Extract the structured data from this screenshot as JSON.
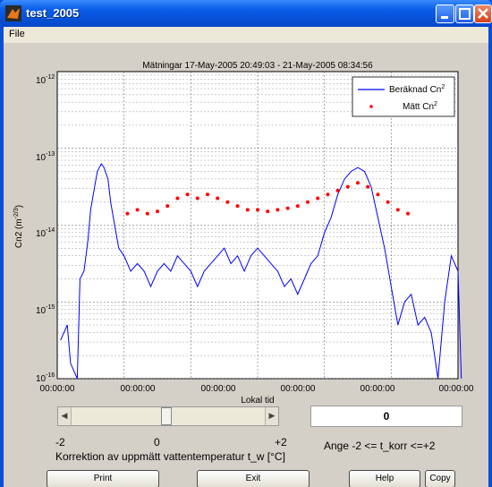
{
  "window": {
    "title": "test_2005"
  },
  "menu": {
    "file": "File"
  },
  "plot": {
    "title": "Mätningar 17-May-2005 20:49:03  -  21-May-2005 08:34:56",
    "xlabel": "Lokal tid",
    "ylabel": "Cn2 (m^-2/3)",
    "yticks": [
      "10^-12",
      "10^-13",
      "10^-14",
      "10^-15",
      "10^-16"
    ],
    "xticks": [
      "00:00:00",
      "00:00:00",
      "00:00:00",
      "00:00:00",
      "00:00:00",
      "00:00:00"
    ],
    "legend": {
      "calc": "Beräknad Cn^2",
      "meas": "Mätt Cn^2"
    },
    "colors": {
      "calc": "#0000ff",
      "meas": "#ff0000"
    }
  },
  "chart_data": {
    "type": "line",
    "title": "Mätningar 17-May-2005 20:49:03  -  21-May-2005 08:34:56",
    "xlabel": "Lokal tid",
    "ylabel": "Cn2 (m^-2/3)",
    "y_scale": "log",
    "ylim": [
      1e-16,
      1e-12
    ],
    "grid": true,
    "legend_position": "top-right",
    "series": [
      {
        "name": "Beräknad Cn^2",
        "style": "line",
        "points": [
          [
            0.05,
            -15.5
          ],
          [
            0.15,
            -15.3
          ],
          [
            0.2,
            -15.8
          ],
          [
            0.3,
            -16.0
          ],
          [
            0.34,
            -14.7
          ],
          [
            0.4,
            -14.6
          ],
          [
            0.46,
            -14.2
          ],
          [
            0.5,
            -13.8
          ],
          [
            0.56,
            -13.5
          ],
          [
            0.6,
            -13.3
          ],
          [
            0.66,
            -13.2
          ],
          [
            0.7,
            -13.25
          ],
          [
            0.76,
            -13.4
          ],
          [
            0.8,
            -13.7
          ],
          [
            0.86,
            -14.0
          ],
          [
            0.92,
            -14.3
          ],
          [
            1.0,
            -14.4
          ],
          [
            1.1,
            -14.6
          ],
          [
            1.2,
            -14.5
          ],
          [
            1.3,
            -14.6
          ],
          [
            1.4,
            -14.8
          ],
          [
            1.5,
            -14.6
          ],
          [
            1.6,
            -14.5
          ],
          [
            1.7,
            -14.6
          ],
          [
            1.8,
            -14.4
          ],
          [
            1.9,
            -14.5
          ],
          [
            2.0,
            -14.6
          ],
          [
            2.1,
            -14.8
          ],
          [
            2.2,
            -14.6
          ],
          [
            2.3,
            -14.5
          ],
          [
            2.4,
            -14.4
          ],
          [
            2.5,
            -14.3
          ],
          [
            2.6,
            -14.5
          ],
          [
            2.7,
            -14.4
          ],
          [
            2.8,
            -14.6
          ],
          [
            2.9,
            -14.4
          ],
          [
            3.0,
            -14.3
          ],
          [
            3.1,
            -14.4
          ],
          [
            3.2,
            -14.5
          ],
          [
            3.3,
            -14.6
          ],
          [
            3.4,
            -14.8
          ],
          [
            3.5,
            -14.7
          ],
          [
            3.6,
            -14.9
          ],
          [
            3.7,
            -14.7
          ],
          [
            3.8,
            -14.5
          ],
          [
            3.9,
            -14.4
          ],
          [
            4.0,
            -14.1
          ],
          [
            4.1,
            -13.9
          ],
          [
            4.2,
            -13.6
          ],
          [
            4.3,
            -13.4
          ],
          [
            4.4,
            -13.3
          ],
          [
            4.5,
            -13.25
          ],
          [
            4.6,
            -13.3
          ],
          [
            4.7,
            -13.5
          ],
          [
            4.8,
            -13.9
          ],
          [
            4.9,
            -14.3
          ],
          [
            5.0,
            -14.8
          ],
          [
            5.1,
            -15.3
          ],
          [
            5.2,
            -15.0
          ],
          [
            5.3,
            -14.9
          ],
          [
            5.4,
            -15.3
          ],
          [
            5.5,
            -15.2
          ],
          [
            5.6,
            -15.4
          ],
          [
            5.7,
            -16.0
          ],
          [
            5.8,
            -15.0
          ],
          [
            5.9,
            -14.4
          ],
          [
            6.0,
            -14.6
          ],
          [
            6.05,
            -16.0
          ]
        ]
      },
      {
        "name": "Mätt Cn^2",
        "style": "dots",
        "points": [
          [
            1.05,
            -13.85
          ],
          [
            1.2,
            -13.8
          ],
          [
            1.35,
            -13.85
          ],
          [
            1.5,
            -13.82
          ],
          [
            1.65,
            -13.75
          ],
          [
            1.8,
            -13.65
          ],
          [
            1.95,
            -13.6
          ],
          [
            2.1,
            -13.65
          ],
          [
            2.25,
            -13.6
          ],
          [
            2.4,
            -13.65
          ],
          [
            2.55,
            -13.7
          ],
          [
            2.7,
            -13.75
          ],
          [
            2.85,
            -13.8
          ],
          [
            3.0,
            -13.8
          ],
          [
            3.15,
            -13.82
          ],
          [
            3.3,
            -13.8
          ],
          [
            3.45,
            -13.78
          ],
          [
            3.6,
            -13.75
          ],
          [
            3.75,
            -13.7
          ],
          [
            3.9,
            -13.65
          ],
          [
            4.05,
            -13.6
          ],
          [
            4.2,
            -13.55
          ],
          [
            4.35,
            -13.5
          ],
          [
            4.5,
            -13.45
          ],
          [
            4.65,
            -13.5
          ],
          [
            4.8,
            -13.6
          ],
          [
            4.95,
            -13.7
          ],
          [
            5.1,
            -13.8
          ],
          [
            5.25,
            -13.85
          ]
        ]
      }
    ]
  },
  "slider": {
    "min_label": "-2",
    "mid_label": "0",
    "max_label": "+2",
    "value": 0.5
  },
  "value_box": {
    "value": "0"
  },
  "range_label": "Ange -2 <= t_korr <=+2",
  "caption": "Korrektion av uppmätt vattentemperatur t_w  [°C]",
  "buttons": {
    "print": "Print",
    "exit": "Exit",
    "help": "Help",
    "copy": "Copy"
  }
}
